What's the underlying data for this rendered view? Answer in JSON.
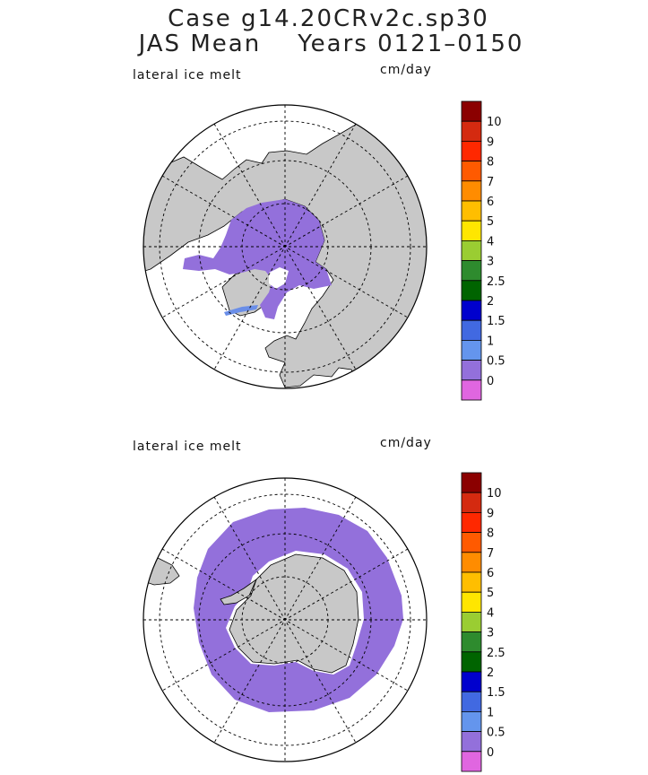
{
  "title": {
    "line1": "Case g14.20CRv2c.sp30",
    "line2": "JAS Mean    Years 0121–0150"
  },
  "colors": {
    "land": "#c8c8c8",
    "ice_melt": "#9370db",
    "ocean": "#ffffff",
    "low_melt": "#6a8ee8"
  },
  "panels": [
    {
      "name": "north",
      "variable_label": "lateral ice melt",
      "units": "cm/day",
      "hemisphere": "Northern",
      "colorbar": {
        "levels": [
          "10",
          "9",
          "8",
          "7",
          "6",
          "5",
          "4",
          "3",
          "2.5",
          "2",
          "1.5",
          "1",
          "0.5",
          "0"
        ],
        "colors": [
          "#8b0000",
          "#d42a10",
          "#ff2800",
          "#ff5a00",
          "#ff8c00",
          "#ffbe00",
          "#ffe600",
          "#9acd32",
          "#2e8b2e",
          "#006400",
          "#0000cd",
          "#4169e1",
          "#6495ed",
          "#9370db",
          "#e066e0"
        ]
      }
    },
    {
      "name": "south",
      "variable_label": "lateral ice melt",
      "units": "cm/day",
      "hemisphere": "Southern",
      "colorbar": {
        "levels": [
          "10",
          "9",
          "8",
          "7",
          "6",
          "5",
          "4",
          "3",
          "2.5",
          "2",
          "1.5",
          "1",
          "0.5",
          "0"
        ],
        "colors": [
          "#8b0000",
          "#d42a10",
          "#ff2800",
          "#ff5a00",
          "#ff8c00",
          "#ffbe00",
          "#ffe600",
          "#9acd32",
          "#2e8b2e",
          "#006400",
          "#0000cd",
          "#4169e1",
          "#6495ed",
          "#9370db",
          "#e066e0"
        ]
      }
    }
  ]
}
